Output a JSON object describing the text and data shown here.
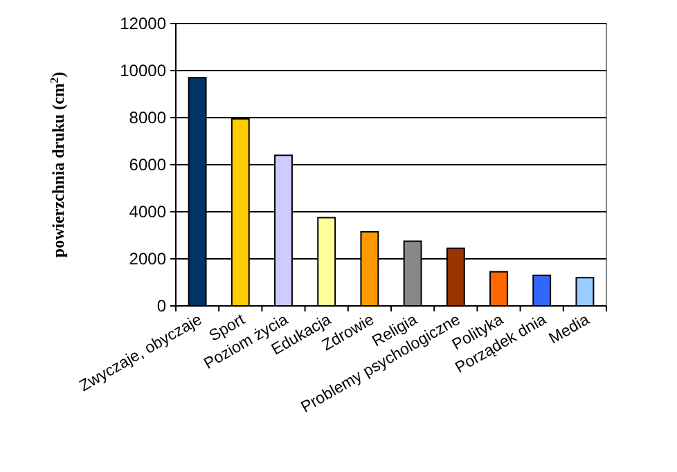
{
  "chart_data": {
    "type": "bar",
    "ylabel": "powierzchnia druku (cm$^{2}$)",
    "categories": [
      "Zwyczaje, obyczaje",
      "Sport",
      "Poziom życia",
      "Edukacja",
      "Zdrowie",
      "Religia",
      "Problemy psychologiczne",
      "Polityka",
      "Porządek dnia",
      "Media"
    ],
    "values": [
      9700,
      7950,
      6400,
      3750,
      3150,
      2750,
      2450,
      1450,
      1300,
      1200
    ],
    "colors": [
      "#003366",
      "#ffcc00",
      "#ccccff",
      "#ffff99",
      "#ff9900",
      "#888888",
      "#993300",
      "#ff6600",
      "#3366ff",
      "#99ccff"
    ],
    "ylim": [
      0,
      12000
    ],
    "yticks": [
      0,
      2000,
      4000,
      6000,
      8000,
      10000,
      12000
    ],
    "grid": "y"
  }
}
